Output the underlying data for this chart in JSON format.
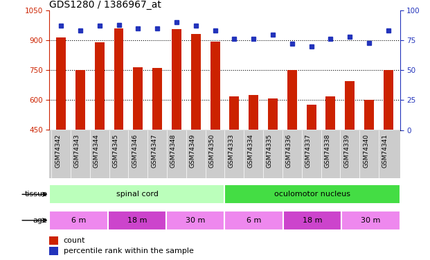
{
  "title": "GDS1280 / 1386967_at",
  "samples": [
    "GSM74342",
    "GSM74343",
    "GSM74344",
    "GSM74345",
    "GSM74346",
    "GSM74347",
    "GSM74348",
    "GSM74349",
    "GSM74350",
    "GSM74333",
    "GSM74334",
    "GSM74335",
    "GSM74336",
    "GSM74337",
    "GSM74338",
    "GSM74339",
    "GSM74340",
    "GSM74341"
  ],
  "counts": [
    915,
    752,
    890,
    960,
    765,
    760,
    955,
    930,
    893,
    618,
    625,
    608,
    750,
    578,
    620,
    695,
    600,
    750
  ],
  "percentiles": [
    87,
    83,
    87,
    88,
    85,
    85,
    90,
    87,
    83,
    76,
    76,
    80,
    72,
    70,
    76,
    78,
    73,
    83
  ],
  "ylim_left": [
    450,
    1050
  ],
  "ylim_right": [
    0,
    100
  ],
  "yticks_left": [
    450,
    600,
    750,
    900,
    1050
  ],
  "yticks_right": [
    0,
    25,
    50,
    75,
    100
  ],
  "bar_color": "#cc2200",
  "dot_color": "#2233bb",
  "tissue_groups": [
    {
      "label": "spinal cord",
      "start": 0,
      "end": 9,
      "color": "#bbffbb"
    },
    {
      "label": "oculomotor nucleus",
      "start": 9,
      "end": 18,
      "color": "#44dd44"
    }
  ],
  "age_groups": [
    {
      "label": "6 m",
      "start": 0,
      "end": 3,
      "color": "#ee88ee"
    },
    {
      "label": "18 m",
      "start": 3,
      "end": 6,
      "color": "#cc44cc"
    },
    {
      "label": "30 m",
      "start": 6,
      "end": 9,
      "color": "#ee88ee"
    },
    {
      "label": "6 m",
      "start": 9,
      "end": 12,
      "color": "#ee88ee"
    },
    {
      "label": "18 m",
      "start": 12,
      "end": 15,
      "color": "#cc44cc"
    },
    {
      "label": "30 m",
      "start": 15,
      "end": 18,
      "color": "#ee88ee"
    }
  ],
  "bar_color_legend": "#cc2200",
  "dot_color_legend": "#2233bb",
  "grid_yticks": [
    600,
    750,
    900
  ],
  "bg_color": "white",
  "bar_width": 0.5,
  "axis_left_color": "#cc2200",
  "axis_right_color": "#2233bb",
  "xlabel_bg": "#cccccc",
  "title_size": 10,
  "tick_label_size": 7.5,
  "sample_label_size": 6.5,
  "row_label_size": 8,
  "legend_size": 8
}
